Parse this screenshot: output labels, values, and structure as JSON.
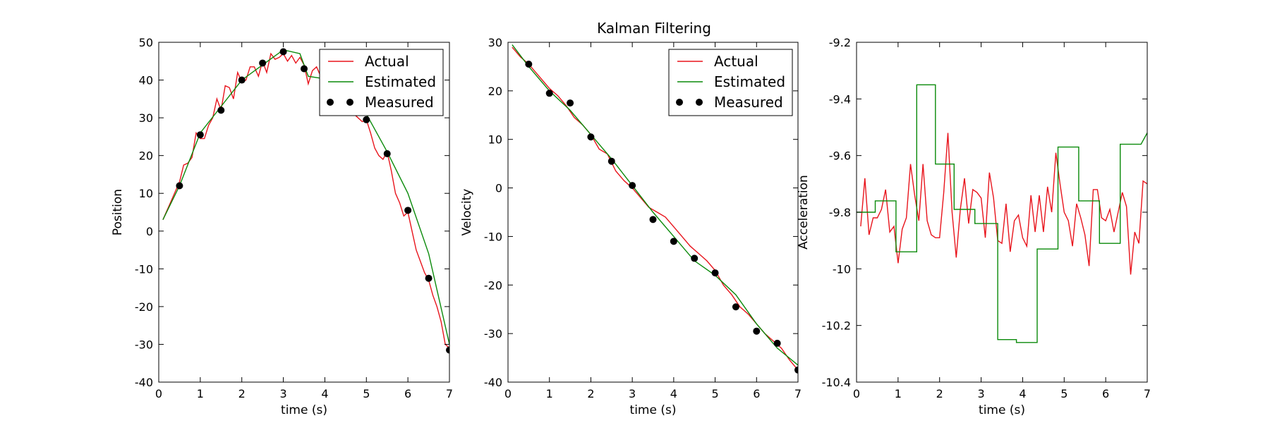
{
  "figure": {
    "title": "Kalman Filtering"
  },
  "colors": {
    "actual": "#e8141c",
    "estimated": "#0a8a0a",
    "measured": "#000000"
  },
  "chart_data": [
    {
      "type": "line",
      "xlabel": "time (s)",
      "ylabel": "Position",
      "xlim": [
        0,
        7
      ],
      "ylim": [
        -40,
        50
      ],
      "xticks": [
        0,
        1,
        2,
        3,
        4,
        5,
        6,
        7
      ],
      "yticks": [
        -40,
        -30,
        -20,
        -10,
        0,
        10,
        20,
        30,
        40,
        50
      ],
      "grid": false,
      "legend": "top-right",
      "series": [
        {
          "name": "Actual",
          "style": "line",
          "color": "#e8141c",
          "x": [
            0.1,
            0.2,
            0.3,
            0.4,
            0.5,
            0.6,
            0.7,
            0.8,
            0.9,
            1.0,
            1.1,
            1.2,
            1.3,
            1.4,
            1.5,
            1.6,
            1.7,
            1.8,
            1.9,
            2.0,
            2.1,
            2.2,
            2.3,
            2.4,
            2.5,
            2.6,
            2.7,
            2.8,
            2.9,
            3.0,
            3.1,
            3.2,
            3.3,
            3.4,
            3.5,
            3.6,
            3.7,
            3.8,
            3.9,
            4.0,
            4.9,
            5.0,
            5.1,
            5.2,
            5.3,
            5.4,
            5.5,
            5.6,
            5.7,
            5.8,
            5.9,
            6.0,
            6.1,
            6.2,
            6.3,
            6.4,
            6.5,
            6.6,
            6.7,
            6.8,
            6.9,
            7.0
          ],
          "y": [
            3,
            5.5,
            8,
            10.5,
            13,
            17.5,
            18,
            19.5,
            26,
            24.5,
            24.5,
            28,
            30,
            35,
            32,
            38.5,
            38,
            35,
            42,
            39.5,
            40,
            43.5,
            43.5,
            41,
            45,
            42,
            47,
            45.5,
            46,
            47,
            45,
            46.5,
            44.5,
            46,
            44,
            39,
            42.5,
            43.5,
            41,
            38,
            29,
            29.5,
            26,
            22,
            20,
            19,
            21,
            16,
            10,
            7.5,
            4,
            5,
            0,
            -5,
            -8,
            -11,
            -13,
            -17,
            -20,
            -24,
            -30,
            -31
          ]
        },
        {
          "name": "Estimated",
          "style": "line",
          "color": "#0a8a0a",
          "x": [
            0.1,
            0.5,
            1.0,
            1.5,
            2.0,
            2.5,
            3.0,
            3.4,
            3.6,
            3.9,
            4.6,
            5.0,
            5.5,
            6.0,
            6.5,
            7.0
          ],
          "y": [
            3,
            12,
            26,
            33,
            40,
            44,
            48,
            47,
            41,
            40.5,
            38,
            31,
            21,
            10,
            -6,
            -30
          ]
        },
        {
          "name": "Measured",
          "style": "markers",
          "color": "#000000",
          "x": [
            0.5,
            1.0,
            1.5,
            2.0,
            2.5,
            3.0,
            3.5,
            5.0,
            5.5,
            6.0,
            6.5,
            7.0
          ],
          "y": [
            12,
            25.5,
            32,
            40,
            44.5,
            47.5,
            43,
            29.5,
            20.5,
            5.5,
            -12.5,
            -31.5
          ]
        }
      ]
    },
    {
      "type": "line",
      "title": "Kalman Filtering",
      "xlabel": "time (s)",
      "ylabel": "Velocity",
      "xlim": [
        0,
        7
      ],
      "ylim": [
        -40,
        30
      ],
      "xticks": [
        0,
        1,
        2,
        3,
        4,
        5,
        6,
        7
      ],
      "yticks": [
        -40,
        -30,
        -20,
        -10,
        0,
        10,
        20,
        30
      ],
      "grid": false,
      "legend": "top-right",
      "series": [
        {
          "name": "Actual",
          "style": "line",
          "color": "#e8141c",
          "x": [
            0.1,
            0.3,
            0.5,
            0.7,
            0.9,
            1.0,
            1.2,
            1.4,
            1.6,
            1.8,
            2.0,
            2.2,
            2.4,
            2.6,
            2.8,
            3.0,
            3.2,
            3.4,
            3.6,
            3.8,
            4.0,
            4.2,
            4.4,
            4.6,
            4.8,
            5.0,
            5.2,
            5.4,
            5.6,
            5.8,
            6.0,
            6.2,
            6.4,
            6.6,
            6.8,
            7.0
          ],
          "y": [
            29,
            27,
            25.5,
            23.5,
            21.5,
            20.5,
            19,
            17,
            14.5,
            13,
            11,
            8,
            7,
            3.5,
            1.5,
            0,
            -2,
            -4,
            -5,
            -6,
            -8,
            -10,
            -12,
            -13.5,
            -15,
            -17,
            -20,
            -22,
            -24.5,
            -26,
            -28,
            -30,
            -31.5,
            -33,
            -35.5,
            -37.5
          ]
        },
        {
          "name": "Estimated",
          "style": "line",
          "color": "#0a8a0a",
          "x": [
            0.1,
            0.5,
            1.0,
            1.5,
            2.0,
            2.5,
            3.0,
            3.5,
            4.0,
            4.5,
            5.0,
            5.5,
            6.0,
            6.5,
            7.0
          ],
          "y": [
            29.5,
            25,
            20,
            16,
            11,
            6,
            0.5,
            -5,
            -10,
            -15,
            -18,
            -22,
            -28,
            -33,
            -36.5
          ]
        },
        {
          "name": "Measured",
          "style": "markers",
          "color": "#000000",
          "x": [
            0.5,
            1.0,
            1.5,
            2.0,
            2.5,
            3.0,
            3.5,
            4.0,
            4.5,
            5.0,
            5.5,
            6.0,
            6.5,
            7.0
          ],
          "y": [
            25.5,
            19.5,
            17.5,
            10.5,
            5.5,
            0.5,
            -6.5,
            -11,
            -14.5,
            -17.5,
            -24.5,
            -29.5,
            -32,
            -37.5
          ]
        }
      ]
    },
    {
      "type": "line",
      "xlabel": "time (s)",
      "ylabel": "Acceleration",
      "xlim": [
        0,
        7
      ],
      "ylim": [
        -10.4,
        -9.2
      ],
      "xticks": [
        0,
        1,
        2,
        3,
        4,
        5,
        6,
        7
      ],
      "yticks": [
        -10.4,
        -10.2,
        -10.0,
        -9.8,
        -9.6,
        -9.4,
        -9.2
      ],
      "grid": false,
      "legend": "none",
      "series": [
        {
          "name": "Actual",
          "style": "line",
          "color": "#e8141c",
          "x": [
            0.1,
            0.2,
            0.3,
            0.4,
            0.5,
            0.6,
            0.7,
            0.8,
            0.9,
            1.0,
            1.1,
            1.2,
            1.3,
            1.4,
            1.5,
            1.6,
            1.7,
            1.8,
            1.9,
            2.0,
            2.1,
            2.2,
            2.3,
            2.4,
            2.5,
            2.6,
            2.7,
            2.8,
            2.9,
            3.0,
            3.1,
            3.2,
            3.3,
            3.4,
            3.5,
            3.6,
            3.7,
            3.8,
            3.9,
            4.0,
            4.1,
            4.2,
            4.3,
            4.4,
            4.5,
            4.6,
            4.7,
            4.8,
            4.9,
            5.0,
            5.1,
            5.2,
            5.3,
            5.4,
            5.5,
            5.6,
            5.7,
            5.8,
            5.9,
            6.0,
            6.1,
            6.2,
            6.3,
            6.4,
            6.5,
            6.6,
            6.7,
            6.8,
            6.9,
            7.0
          ],
          "y": [
            -9.85,
            -9.68,
            -9.88,
            -9.82,
            -9.82,
            -9.79,
            -9.72,
            -9.87,
            -9.85,
            -9.98,
            -9.86,
            -9.82,
            -9.63,
            -9.74,
            -9.83,
            -9.63,
            -9.83,
            -9.88,
            -9.89,
            -9.89,
            -9.73,
            -9.52,
            -9.8,
            -9.96,
            -9.79,
            -9.68,
            -9.84,
            -9.72,
            -9.73,
            -9.75,
            -9.89,
            -9.66,
            -9.75,
            -9.9,
            -9.91,
            -9.77,
            -9.94,
            -9.83,
            -9.81,
            -9.89,
            -9.92,
            -9.74,
            -9.87,
            -9.74,
            -9.87,
            -9.71,
            -9.8,
            -9.59,
            -9.7,
            -9.8,
            -9.83,
            -9.92,
            -9.77,
            -9.82,
            -9.88,
            -9.99,
            -9.72,
            -9.72,
            -9.82,
            -9.83,
            -9.79,
            -9.87,
            -9.8,
            -9.73,
            -9.78,
            -10.02,
            -9.87,
            -9.91,
            -9.69,
            -9.7
          ]
        },
        {
          "name": "Estimated",
          "style": "step",
          "color": "#0a8a0a",
          "x": [
            0,
            0.45,
            0.45,
            0.95,
            0.95,
            1.45,
            1.45,
            1.9,
            1.9,
            2.35,
            2.35,
            2.85,
            2.85,
            3.4,
            3.4,
            3.85,
            3.85,
            4.35,
            4.35,
            4.85,
            4.85,
            5.35,
            5.35,
            5.85,
            5.85,
            6.35,
            6.35,
            6.85,
            7.0
          ],
          "y": [
            -9.8,
            -9.8,
            -9.76,
            -9.76,
            -9.94,
            -9.94,
            -9.35,
            -9.35,
            -9.63,
            -9.63,
            -9.79,
            -9.79,
            -9.84,
            -9.84,
            -10.25,
            -10.25,
            -10.26,
            -10.26,
            -9.93,
            -9.93,
            -9.57,
            -9.57,
            -9.76,
            -9.76,
            -9.91,
            -9.91,
            -9.56,
            -9.56,
            -9.52
          ]
        }
      ]
    }
  ]
}
